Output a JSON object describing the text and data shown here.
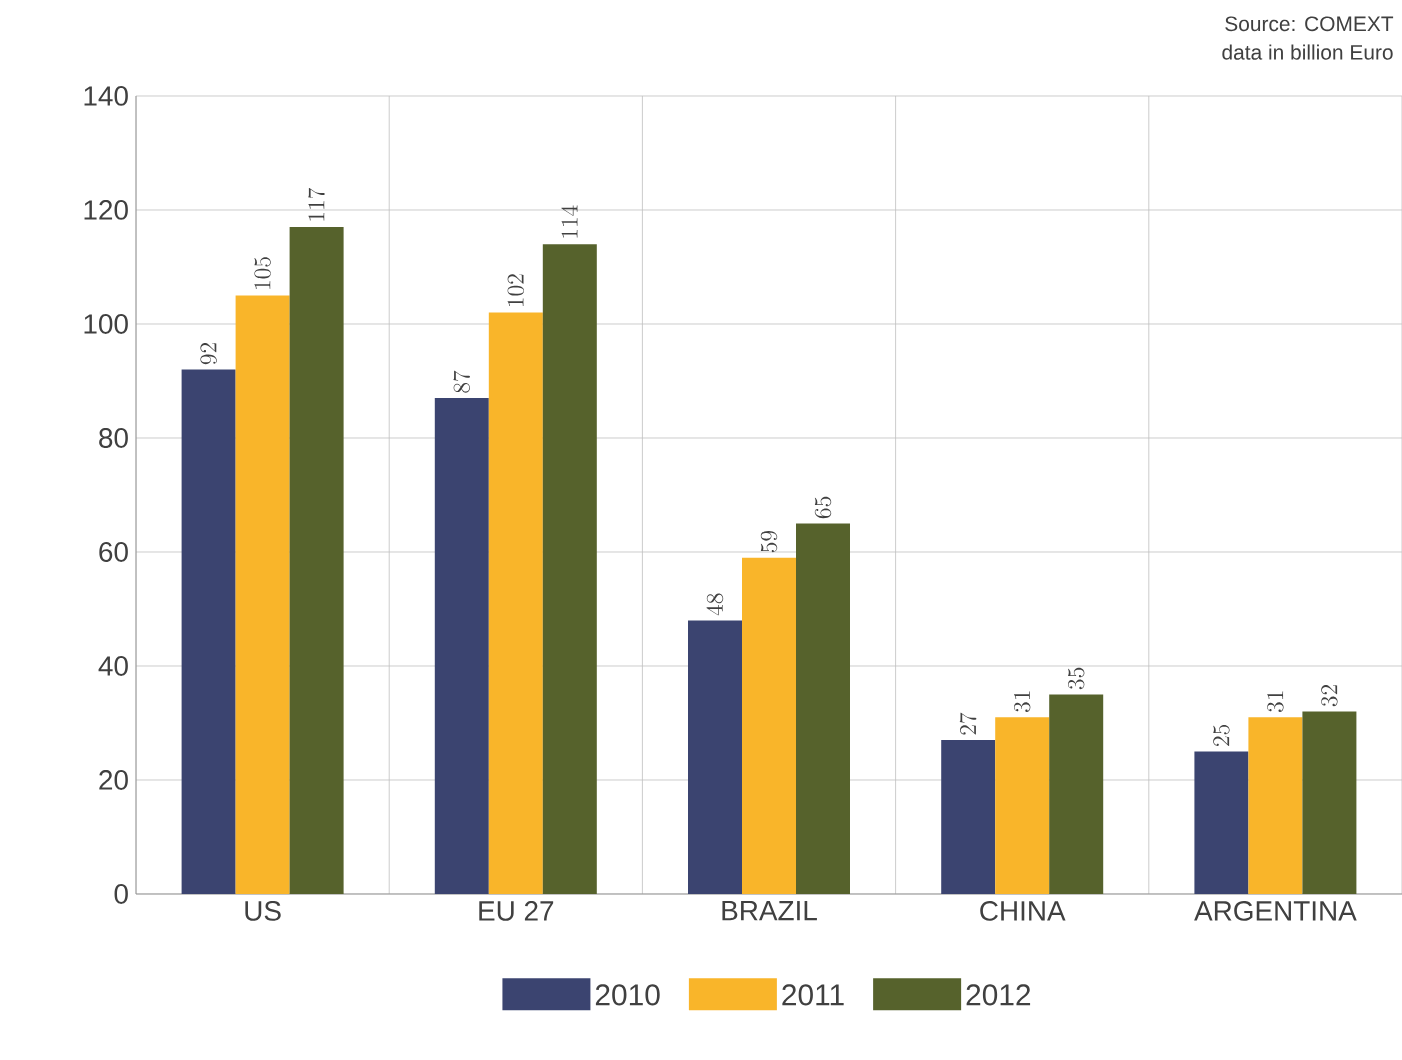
{
  "chart_data": {
    "type": "bar",
    "categories": [
      "US",
      "EU 27",
      "BRAZIL",
      "CHINA",
      "ARGENTINA"
    ],
    "series": [
      {
        "name": "2010",
        "color": "#3b4470",
        "values": [
          92,
          87,
          48,
          27,
          25
        ]
      },
      {
        "name": "2011",
        "color": "#f9b52a",
        "values": [
          105,
          102,
          59,
          31,
          31
        ]
      },
      {
        "name": "2012",
        "color": "#56622c",
        "values": [
          117,
          114,
          65,
          35,
          32
        ]
      }
    ],
    "ylim": [
      0,
      140
    ],
    "yticks": [
      0,
      20,
      40,
      60,
      80,
      100,
      120,
      140
    ],
    "grid": true,
    "legend": "bottom",
    "data_labels": true,
    "annotations": [
      "Source: COMEXT",
      "data in billion Euro"
    ]
  }
}
